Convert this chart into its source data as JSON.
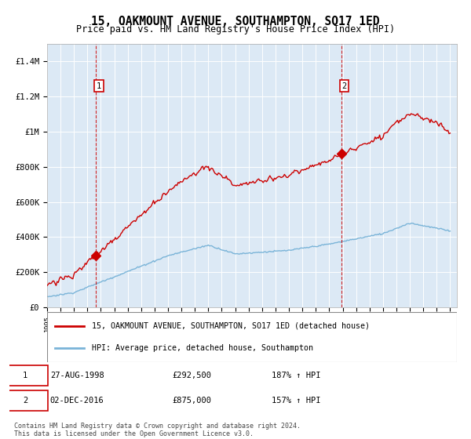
{
  "title": "15, OAKMOUNT AVENUE, SOUTHAMPTON, SO17 1ED",
  "subtitle": "Price paid vs. HM Land Registry's House Price Index (HPI)",
  "background_color": "#dce9f5",
  "hpi_color": "#7ab4d8",
  "price_color": "#cc0000",
  "ylim": [
    0,
    1500000
  ],
  "yticks": [
    0,
    200000,
    400000,
    600000,
    800000,
    1000000,
    1200000,
    1400000
  ],
  "ytick_labels": [
    "£0",
    "£200K",
    "£400K",
    "£600K",
    "£800K",
    "£1M",
    "£1.2M",
    "£1.4M"
  ],
  "xmin": 1995,
  "xmax": 2025.5,
  "marker1_year": 1998.65,
  "marker1_price": 292500,
  "marker2_year": 2016.92,
  "marker2_price": 875000,
  "legend_label1": "15, OAKMOUNT AVENUE, SOUTHAMPTON, SO17 1ED (detached house)",
  "legend_label2": "HPI: Average price, detached house, Southampton",
  "table_row1": [
    "1",
    "27-AUG-1998",
    "£292,500",
    "187% ↑ HPI"
  ],
  "table_row2": [
    "2",
    "02-DEC-2016",
    "£875,000",
    "157% ↑ HPI"
  ],
  "footer": "Contains HM Land Registry data © Crown copyright and database right 2024.\nThis data is licensed under the Open Government Licence v3.0."
}
